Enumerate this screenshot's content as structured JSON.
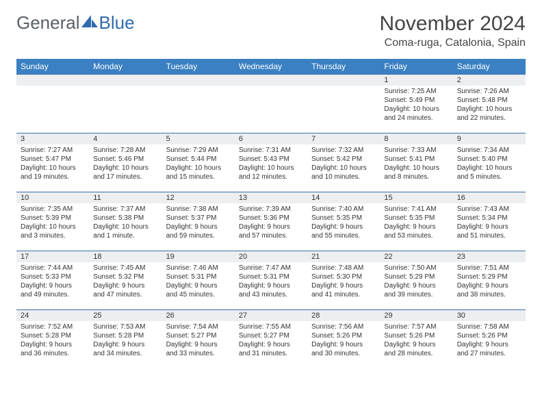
{
  "brand": {
    "word1": "General",
    "word2": "Blue"
  },
  "title": "November 2024",
  "location": "Coma-ruga, Catalonia, Spain",
  "weekdays": [
    "Sunday",
    "Monday",
    "Tuesday",
    "Wednesday",
    "Thursday",
    "Friday",
    "Saturday"
  ],
  "colors": {
    "header_bg": "#3a80c2",
    "header_text": "#ffffff",
    "row_border": "#3a6fa8",
    "daynum_bg": "#eceef0",
    "text": "#333333",
    "brand_gray": "#5a6068",
    "brand_blue": "#2f6aad"
  },
  "weeks": [
    [
      {
        "n": "",
        "lines": []
      },
      {
        "n": "",
        "lines": []
      },
      {
        "n": "",
        "lines": []
      },
      {
        "n": "",
        "lines": []
      },
      {
        "n": "",
        "lines": []
      },
      {
        "n": "1",
        "lines": [
          "Sunrise: 7:25 AM",
          "Sunset: 5:49 PM",
          "Daylight: 10 hours",
          "and 24 minutes."
        ]
      },
      {
        "n": "2",
        "lines": [
          "Sunrise: 7:26 AM",
          "Sunset: 5:48 PM",
          "Daylight: 10 hours",
          "and 22 minutes."
        ]
      }
    ],
    [
      {
        "n": "3",
        "lines": [
          "Sunrise: 7:27 AM",
          "Sunset: 5:47 PM",
          "Daylight: 10 hours",
          "and 19 minutes."
        ]
      },
      {
        "n": "4",
        "lines": [
          "Sunrise: 7:28 AM",
          "Sunset: 5:46 PM",
          "Daylight: 10 hours",
          "and 17 minutes."
        ]
      },
      {
        "n": "5",
        "lines": [
          "Sunrise: 7:29 AM",
          "Sunset: 5:44 PM",
          "Daylight: 10 hours",
          "and 15 minutes."
        ]
      },
      {
        "n": "6",
        "lines": [
          "Sunrise: 7:31 AM",
          "Sunset: 5:43 PM",
          "Daylight: 10 hours",
          "and 12 minutes."
        ]
      },
      {
        "n": "7",
        "lines": [
          "Sunrise: 7:32 AM",
          "Sunset: 5:42 PM",
          "Daylight: 10 hours",
          "and 10 minutes."
        ]
      },
      {
        "n": "8",
        "lines": [
          "Sunrise: 7:33 AM",
          "Sunset: 5:41 PM",
          "Daylight: 10 hours",
          "and 8 minutes."
        ]
      },
      {
        "n": "9",
        "lines": [
          "Sunrise: 7:34 AM",
          "Sunset: 5:40 PM",
          "Daylight: 10 hours",
          "and 5 minutes."
        ]
      }
    ],
    [
      {
        "n": "10",
        "lines": [
          "Sunrise: 7:35 AM",
          "Sunset: 5:39 PM",
          "Daylight: 10 hours",
          "and 3 minutes."
        ]
      },
      {
        "n": "11",
        "lines": [
          "Sunrise: 7:37 AM",
          "Sunset: 5:38 PM",
          "Daylight: 10 hours",
          "and 1 minute."
        ]
      },
      {
        "n": "12",
        "lines": [
          "Sunrise: 7:38 AM",
          "Sunset: 5:37 PM",
          "Daylight: 9 hours",
          "and 59 minutes."
        ]
      },
      {
        "n": "13",
        "lines": [
          "Sunrise: 7:39 AM",
          "Sunset: 5:36 PM",
          "Daylight: 9 hours",
          "and 57 minutes."
        ]
      },
      {
        "n": "14",
        "lines": [
          "Sunrise: 7:40 AM",
          "Sunset: 5:35 PM",
          "Daylight: 9 hours",
          "and 55 minutes."
        ]
      },
      {
        "n": "15",
        "lines": [
          "Sunrise: 7:41 AM",
          "Sunset: 5:35 PM",
          "Daylight: 9 hours",
          "and 53 minutes."
        ]
      },
      {
        "n": "16",
        "lines": [
          "Sunrise: 7:43 AM",
          "Sunset: 5:34 PM",
          "Daylight: 9 hours",
          "and 51 minutes."
        ]
      }
    ],
    [
      {
        "n": "17",
        "lines": [
          "Sunrise: 7:44 AM",
          "Sunset: 5:33 PM",
          "Daylight: 9 hours",
          "and 49 minutes."
        ]
      },
      {
        "n": "18",
        "lines": [
          "Sunrise: 7:45 AM",
          "Sunset: 5:32 PM",
          "Daylight: 9 hours",
          "and 47 minutes."
        ]
      },
      {
        "n": "19",
        "lines": [
          "Sunrise: 7:46 AM",
          "Sunset: 5:31 PM",
          "Daylight: 9 hours",
          "and 45 minutes."
        ]
      },
      {
        "n": "20",
        "lines": [
          "Sunrise: 7:47 AM",
          "Sunset: 5:31 PM",
          "Daylight: 9 hours",
          "and 43 minutes."
        ]
      },
      {
        "n": "21",
        "lines": [
          "Sunrise: 7:48 AM",
          "Sunset: 5:30 PM",
          "Daylight: 9 hours",
          "and 41 minutes."
        ]
      },
      {
        "n": "22",
        "lines": [
          "Sunrise: 7:50 AM",
          "Sunset: 5:29 PM",
          "Daylight: 9 hours",
          "and 39 minutes."
        ]
      },
      {
        "n": "23",
        "lines": [
          "Sunrise: 7:51 AM",
          "Sunset: 5:29 PM",
          "Daylight: 9 hours",
          "and 38 minutes."
        ]
      }
    ],
    [
      {
        "n": "24",
        "lines": [
          "Sunrise: 7:52 AM",
          "Sunset: 5:28 PM",
          "Daylight: 9 hours",
          "and 36 minutes."
        ]
      },
      {
        "n": "25",
        "lines": [
          "Sunrise: 7:53 AM",
          "Sunset: 5:28 PM",
          "Daylight: 9 hours",
          "and 34 minutes."
        ]
      },
      {
        "n": "26",
        "lines": [
          "Sunrise: 7:54 AM",
          "Sunset: 5:27 PM",
          "Daylight: 9 hours",
          "and 33 minutes."
        ]
      },
      {
        "n": "27",
        "lines": [
          "Sunrise: 7:55 AM",
          "Sunset: 5:27 PM",
          "Daylight: 9 hours",
          "and 31 minutes."
        ]
      },
      {
        "n": "28",
        "lines": [
          "Sunrise: 7:56 AM",
          "Sunset: 5:26 PM",
          "Daylight: 9 hours",
          "and 30 minutes."
        ]
      },
      {
        "n": "29",
        "lines": [
          "Sunrise: 7:57 AM",
          "Sunset: 5:26 PM",
          "Daylight: 9 hours",
          "and 28 minutes."
        ]
      },
      {
        "n": "30",
        "lines": [
          "Sunrise: 7:58 AM",
          "Sunset: 5:26 PM",
          "Daylight: 9 hours",
          "and 27 minutes."
        ]
      }
    ]
  ]
}
